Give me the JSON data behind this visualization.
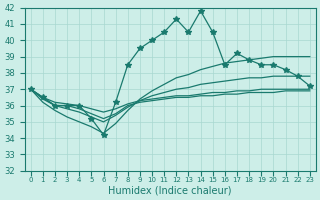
{
  "xlabel": "Humidex (Indice chaleur)",
  "x": [
    0,
    1,
    2,
    3,
    4,
    5,
    6,
    7,
    8,
    9,
    10,
    11,
    12,
    13,
    14,
    15,
    16,
    17,
    18,
    19,
    20,
    21,
    22,
    23
  ],
  "main_y": [
    37.0,
    36.5,
    36.0,
    36.0,
    36.0,
    35.2,
    34.2,
    36.2,
    38.5,
    39.5,
    40.0,
    40.5,
    41.3,
    40.5,
    41.8,
    40.5,
    38.5,
    39.2,
    38.8,
    38.5,
    38.5,
    38.2,
    37.8,
    37.2
  ],
  "line_min_y": [
    37.0,
    36.5,
    36.0,
    36.0,
    35.8,
    35.5,
    35.2,
    35.5,
    36.0,
    36.2,
    36.3,
    36.4,
    36.5,
    36.5,
    36.6,
    36.6,
    36.7,
    36.7,
    36.8,
    36.8,
    36.8,
    36.9,
    36.9,
    36.9
  ],
  "line_p25_y": [
    37.0,
    36.5,
    36.2,
    36.1,
    36.0,
    35.8,
    35.6,
    35.8,
    36.1,
    36.3,
    36.4,
    36.5,
    36.6,
    36.6,
    36.7,
    36.8,
    36.8,
    36.9,
    36.9,
    37.0,
    37.0,
    37.0,
    37.0,
    37.0
  ],
  "line_med_y": [
    37.0,
    36.4,
    36.0,
    35.8,
    35.6,
    35.3,
    35.0,
    35.4,
    35.9,
    36.3,
    36.6,
    36.8,
    37.0,
    37.1,
    37.3,
    37.4,
    37.5,
    37.6,
    37.7,
    37.7,
    37.8,
    37.8,
    37.8,
    37.8
  ],
  "line_max_y": [
    37.0,
    36.2,
    35.7,
    35.3,
    35.0,
    34.7,
    34.3,
    34.9,
    35.7,
    36.4,
    36.9,
    37.3,
    37.7,
    37.9,
    38.2,
    38.4,
    38.6,
    38.7,
    38.8,
    38.9,
    39.0,
    39.0,
    39.0,
    39.0
  ],
  "color": "#1a7a6e",
  "bg_color": "#cdeee8",
  "grid_color": "#a8d8d0",
  "ylim": [
    32,
    42
  ],
  "yticks": [
    32,
    33,
    34,
    35,
    36,
    37,
    38,
    39,
    40,
    41,
    42
  ]
}
